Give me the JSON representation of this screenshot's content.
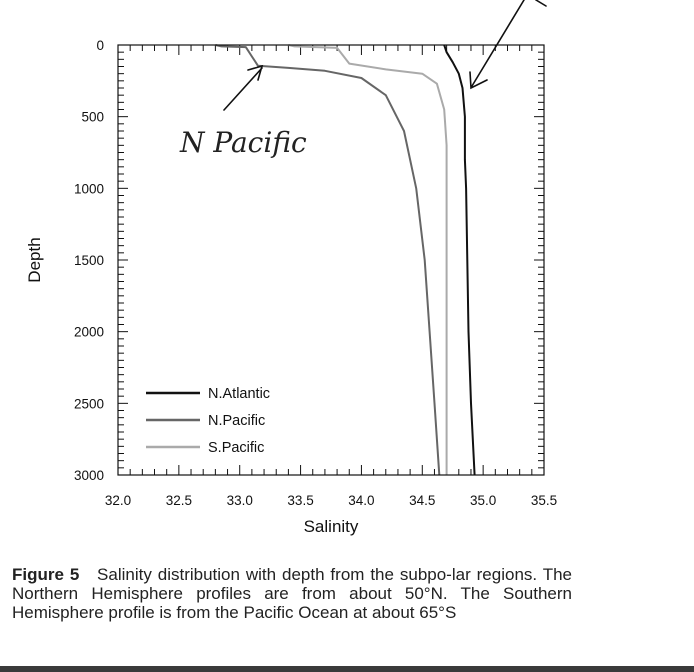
{
  "chart_data": {
    "type": "line",
    "xlabel": "Salinity",
    "ylabel": "Depth",
    "xlim": [
      32.0,
      35.5
    ],
    "ylim": [
      0,
      3000
    ],
    "y_inverted": true,
    "x_axis_position": "bottom",
    "x_ticks": [
      "32.0",
      "32.5",
      "33.0",
      "33.5",
      "34.0",
      "34.5",
      "35.0",
      "35.5"
    ],
    "y_ticks": [
      "0",
      "500",
      "1000",
      "1500",
      "2000",
      "2500",
      "3000"
    ],
    "legend_position": "bottom-left",
    "grid": false,
    "series": [
      {
        "name": "N.Atlantic",
        "color": "#111111",
        "points": [
          [
            34.68,
            0
          ],
          [
            34.7,
            50
          ],
          [
            34.75,
            120
          ],
          [
            34.8,
            200
          ],
          [
            34.83,
            300
          ],
          [
            34.85,
            500
          ],
          [
            34.85,
            800
          ],
          [
            34.86,
            1000
          ],
          [
            34.87,
            1500
          ],
          [
            34.88,
            2000
          ],
          [
            34.9,
            2500
          ],
          [
            34.93,
            3000
          ]
        ]
      },
      {
        "name": "N.Pacific",
        "color": "#666666",
        "points": [
          [
            32.8,
            0
          ],
          [
            32.85,
            10
          ],
          [
            33.05,
            15
          ],
          [
            33.1,
            80
          ],
          [
            33.15,
            145
          ],
          [
            33.4,
            160
          ],
          [
            33.7,
            180
          ],
          [
            34.0,
            230
          ],
          [
            34.2,
            350
          ],
          [
            34.35,
            600
          ],
          [
            34.45,
            1000
          ],
          [
            34.52,
            1500
          ],
          [
            34.56,
            2000
          ],
          [
            34.6,
            2500
          ],
          [
            34.64,
            3000
          ]
        ]
      },
      {
        "name": "S.Pacific",
        "color": "#aaaaaa",
        "points": [
          [
            33.4,
            0
          ],
          [
            33.45,
            10
          ],
          [
            33.8,
            20
          ],
          [
            33.9,
            130
          ],
          [
            34.2,
            170
          ],
          [
            34.5,
            200
          ],
          [
            34.62,
            270
          ],
          [
            34.68,
            450
          ],
          [
            34.7,
            700
          ],
          [
            34.7,
            1000
          ],
          [
            34.7,
            2000
          ],
          [
            34.7,
            3000
          ]
        ]
      }
    ]
  },
  "annotation": {
    "label": "N Pacific"
  },
  "caption": {
    "label": "Figure 5",
    "text": "Salinity distribution with depth from the subpo-lar regions. The Northern Hemisphere profiles are from about 50°N. The Southern Hemisphere profile is from the Pacific Ocean at about 65°S"
  }
}
